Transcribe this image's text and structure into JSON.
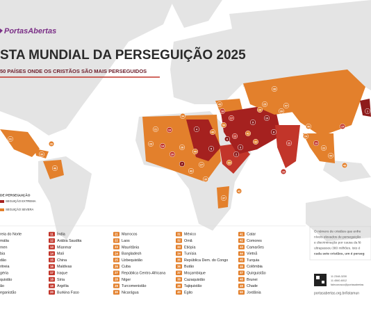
{
  "header": {
    "logo": "PortasAbertas",
    "title": "STA MUNDIAL DA PERSEGUIÇÃO 2025",
    "subtitle": "50 PAÍSES ONDE OS CRISTÃOS SÃO MAIS PERSEGUIDOS"
  },
  "legend": {
    "title": "DE PERSEGUIÇÃO",
    "items": [
      {
        "label": "SEGUIÇÃO EXTREMA",
        "color": "#a5211f"
      },
      {
        "label": "SEGUIÇÃO SEVERA",
        "color": "#e3802c"
      }
    ]
  },
  "columns": [
    {
      "color": "#8e1b1b",
      "items": [
        {
          "name": "reia do Norte"
        },
        {
          "name": "mália"
        },
        {
          "name": "men"
        },
        {
          "name": "bia"
        },
        {
          "name": "dão"
        },
        {
          "name": "ritreia"
        },
        {
          "name": "géria"
        },
        {
          "name": "quistão"
        },
        {
          "name": "ão"
        },
        {
          "name": "eganistão"
        }
      ]
    },
    {
      "color": "#c2352a",
      "items": [
        {
          "rank": 11,
          "name": "Índia"
        },
        {
          "rank": 12,
          "name": "Arábia Saudita"
        },
        {
          "rank": 13,
          "name": "Mianmar"
        },
        {
          "rank": 14,
          "name": "Mali"
        },
        {
          "rank": 15,
          "name": "China"
        },
        {
          "rank": 16,
          "name": "Maldivas"
        },
        {
          "rank": 17,
          "name": "Iraque"
        },
        {
          "rank": 18,
          "name": "Síria"
        },
        {
          "rank": 19,
          "name": "Argélia"
        },
        {
          "rank": 20,
          "name": "Burkina Faso"
        }
      ]
    },
    {
      "color": "#e3802c",
      "items": [
        {
          "rank": 21,
          "name": "Marrocos"
        },
        {
          "rank": 22,
          "name": "Laos"
        },
        {
          "rank": 23,
          "name": "Mauritânia"
        },
        {
          "rank": 24,
          "name": "Bangladesh"
        },
        {
          "rank": 25,
          "name": "Uzbequistão"
        },
        {
          "rank": 26,
          "name": "Cuba"
        },
        {
          "rank": 27,
          "name": "República Centro-Africana"
        },
        {
          "rank": 28,
          "name": "Níger"
        },
        {
          "rank": 29,
          "name": "Turcomenistão"
        },
        {
          "rank": 30,
          "name": "Nicarágua"
        }
      ]
    },
    {
      "color": "#e3802c",
      "items": [
        {
          "rank": 31,
          "name": "México"
        },
        {
          "rank": 32,
          "name": "Omã"
        },
        {
          "rank": 33,
          "name": "Etiópia"
        },
        {
          "rank": 34,
          "name": "Tunísia"
        },
        {
          "rank": 35,
          "name": "República Dem. do Congo"
        },
        {
          "rank": 36,
          "name": "Butão"
        },
        {
          "rank": 37,
          "name": "Moçambique"
        },
        {
          "rank": 38,
          "name": "Cazaquistão"
        },
        {
          "rank": 39,
          "name": "Tajiquistão"
        },
        {
          "rank": 40,
          "name": "Egito"
        }
      ]
    },
    {
      "color": "#e3802c",
      "items": [
        {
          "rank": 41,
          "name": "Catar"
        },
        {
          "rank": 42,
          "name": "Comores"
        },
        {
          "rank": 43,
          "name": "Camarões"
        },
        {
          "rank": 44,
          "name": "Vietnã"
        },
        {
          "rank": 45,
          "name": "Turquia"
        },
        {
          "rank": 46,
          "name": "Colômbia"
        },
        {
          "rank": 47,
          "name": "Quirguistão"
        },
        {
          "rank": 48,
          "name": "Brunei"
        },
        {
          "rank": 49,
          "name": "Chade"
        },
        {
          "rank": 50,
          "name": "Jordânia"
        }
      ]
    }
  ],
  "map_markers": [
    {
      "color": "#8e1b1b",
      "labels": [
        1,
        2,
        3,
        4,
        5,
        6,
        7,
        8,
        9,
        10
      ]
    },
    {
      "color": "#c2352a",
      "labels": [
        11,
        12,
        13,
        14,
        15,
        16,
        17,
        18,
        19,
        20
      ]
    },
    {
      "color": "#e3802c",
      "labels": [
        21,
        22,
        23,
        24,
        25,
        26,
        27,
        28,
        29,
        30,
        31,
        32,
        33,
        34,
        35,
        36,
        37,
        38,
        39,
        40,
        41,
        42,
        43,
        44,
        45,
        46,
        47,
        48,
        49,
        50
      ]
    }
  ],
  "info": {
    "lines": [
      "O número de cristãos que enfre",
      "níveis elevados de perseguição",
      "e discriminação por causa da fé",
      "ultrapassou 380 milhões. Isto é",
      "cada sete cristãos, um é perseg"
    ],
    "contacts": [
      "11 2348-3230",
      "11 4560-6012",
      "faleconosco@portasabertas"
    ],
    "url": "portasabertas.org.br/listamun"
  }
}
